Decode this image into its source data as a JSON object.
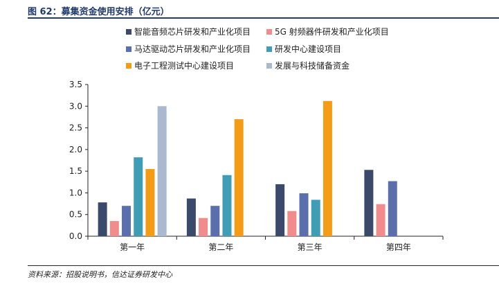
{
  "figure": {
    "title": "图 62：募集资金使用安排（亿元）",
    "source": "资料来源：招股说明书，信达证券研发中心"
  },
  "chart_data": {
    "type": "bar",
    "title": "",
    "xlabel": "",
    "ylabel": "",
    "categories": [
      "第一年",
      "第二年",
      "第三年",
      "第四年"
    ],
    "ylim": [
      0,
      3.5
    ],
    "yticks": [
      "0.0",
      "0.5",
      "1.0",
      "1.5",
      "2.0",
      "2.5",
      "3.0",
      "3.5"
    ],
    "grid": false,
    "legend_position": "top",
    "series": [
      {
        "name": "智能音频芯片研发和产业化项目",
        "color": "#3b4a6b",
        "values": [
          0.78,
          0.87,
          1.2,
          1.53
        ]
      },
      {
        "name": "5G 射频器件研发和产业化项目",
        "color": "#f28b8b",
        "values": [
          0.35,
          0.42,
          0.58,
          0.74
        ]
      },
      {
        "name": "马达驱动芯片研发和产业化项目",
        "color": "#5b6fae",
        "values": [
          0.7,
          0.7,
          0.99,
          1.27
        ]
      },
      {
        "name": "研发中心建设项目",
        "color": "#3f9db5",
        "values": [
          1.82,
          1.41,
          0.84,
          0
        ]
      },
      {
        "name": "电子工程测试中心建设项目",
        "color": "#f59c17",
        "values": [
          1.55,
          2.7,
          3.12,
          0
        ]
      },
      {
        "name": "发展与科技储备资金",
        "color": "#a9b9cf",
        "values": [
          3.0,
          0,
          0,
          0
        ]
      }
    ]
  }
}
